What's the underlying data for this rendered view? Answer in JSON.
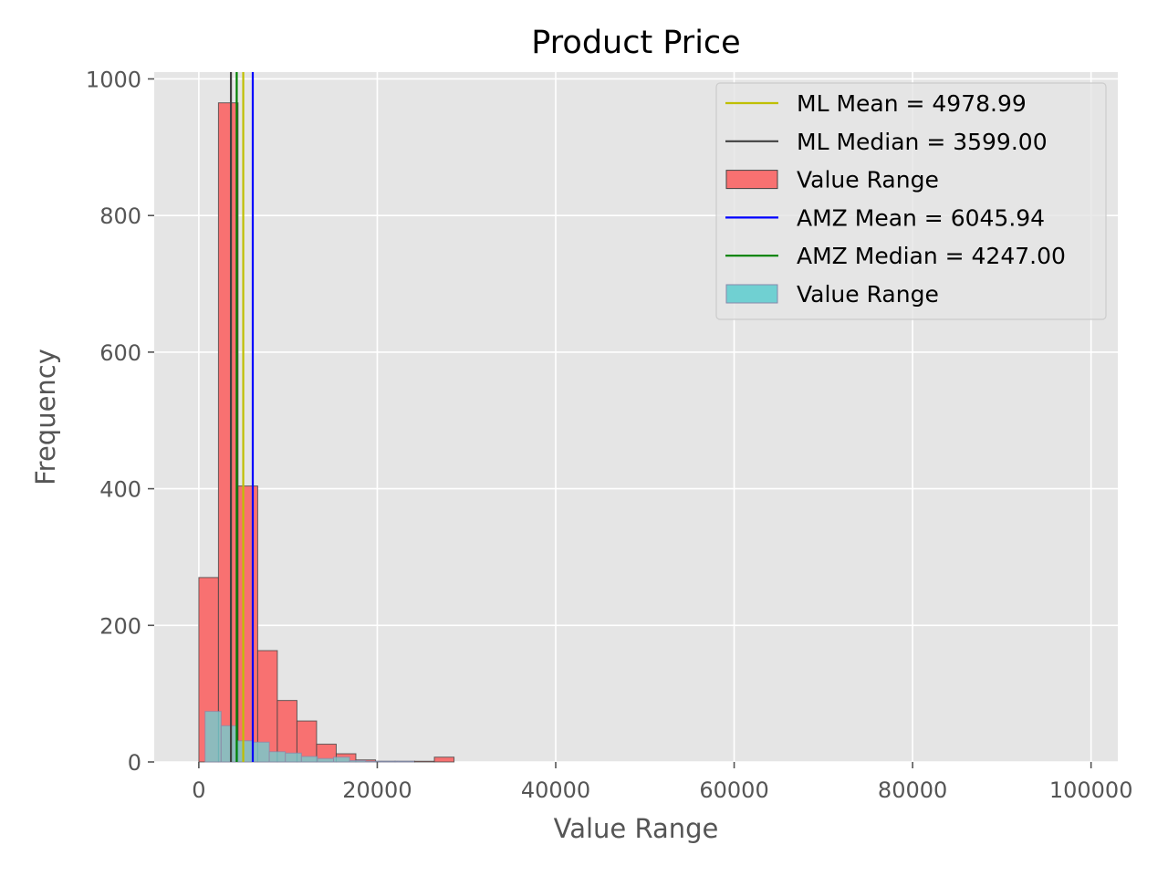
{
  "chart_data": {
    "type": "bar",
    "title": "Product Price",
    "xlabel": "Value Range",
    "ylabel": "Frequency",
    "xlim": [
      -5000,
      103000
    ],
    "ylim": [
      0,
      1010
    ],
    "x_ticks": [
      0,
      20000,
      40000,
      60000,
      80000,
      100000
    ],
    "x_tick_labels": [
      "0",
      "20000",
      "40000",
      "60000",
      "80000",
      "100000"
    ],
    "y_ticks": [
      0,
      200,
      400,
      600,
      800,
      1000
    ],
    "y_tick_labels": [
      "0",
      "200",
      "400",
      "600",
      "800",
      "1000"
    ],
    "grid": true,
    "background": "#E5E5E5",
    "legend_position": "top-right",
    "histograms": [
      {
        "label": "Value Range",
        "color": "#F87171",
        "edge_color": "#444444",
        "bins": [
          {
            "x0": 0,
            "x1": 2200,
            "count": 270
          },
          {
            "x0": 2200,
            "x1": 4400,
            "count": 965
          },
          {
            "x0": 4400,
            "x1": 6600,
            "count": 404
          },
          {
            "x0": 6600,
            "x1": 8800,
            "count": 163
          },
          {
            "x0": 8800,
            "x1": 11000,
            "count": 90
          },
          {
            "x0": 11000,
            "x1": 13200,
            "count": 60
          },
          {
            "x0": 13200,
            "x1": 15400,
            "count": 26
          },
          {
            "x0": 15400,
            "x1": 17600,
            "count": 12
          },
          {
            "x0": 17600,
            "x1": 19800,
            "count": 3
          },
          {
            "x0": 19800,
            "x1": 22000,
            "count": 1
          },
          {
            "x0": 22000,
            "x1": 24200,
            "count": 1
          },
          {
            "x0": 24200,
            "x1": 26400,
            "count": 1
          },
          {
            "x0": 26400,
            "x1": 28600,
            "count": 7
          }
        ]
      },
      {
        "label": "Value Range",
        "color": "#70D0D2",
        "edge_color": "#8888AA",
        "bins": [
          {
            "x0": 700,
            "x1": 2500,
            "count": 74
          },
          {
            "x0": 2500,
            "x1": 4300,
            "count": 53
          },
          {
            "x0": 4300,
            "x1": 6100,
            "count": 31
          },
          {
            "x0": 6100,
            "x1": 7900,
            "count": 29
          },
          {
            "x0": 7900,
            "x1": 9700,
            "count": 15
          },
          {
            "x0": 9700,
            "x1": 11500,
            "count": 13
          },
          {
            "x0": 11500,
            "x1": 13300,
            "count": 8
          },
          {
            "x0": 13300,
            "x1": 15100,
            "count": 5
          },
          {
            "x0": 15100,
            "x1": 16900,
            "count": 7
          },
          {
            "x0": 16900,
            "x1": 18700,
            "count": 2
          },
          {
            "x0": 18700,
            "x1": 20500,
            "count": 1
          },
          {
            "x0": 20500,
            "x1": 22300,
            "count": 1
          },
          {
            "x0": 22300,
            "x1": 24100,
            "count": 1
          }
        ]
      }
    ],
    "vlines": [
      {
        "label": "ML Mean = 4978.99",
        "x": 4978.99,
        "color": "#BFBF00"
      },
      {
        "label": "ML Median = 3599.00",
        "x": 3599.0,
        "color": "#404040"
      },
      {
        "label": "AMZ Mean = 6045.94",
        "x": 6045.94,
        "color": "#0000FF"
      },
      {
        "label": "AMZ Median = 4247.00",
        "x": 4247.0,
        "color": "#008000"
      }
    ],
    "legend": [
      {
        "kind": "line",
        "label": "ML Mean = 4978.99",
        "color": "#BFBF00"
      },
      {
        "kind": "line",
        "label": "ML Median = 3599.00",
        "color": "#404040"
      },
      {
        "kind": "patch",
        "label": "Value Range",
        "color": "#F87171",
        "edge_color": "#444444"
      },
      {
        "kind": "line",
        "label": "AMZ Mean = 6045.94",
        "color": "#0000FF"
      },
      {
        "kind": "line",
        "label": "AMZ Median = 4247.00",
        "color": "#008000"
      },
      {
        "kind": "patch",
        "label": "Value Range",
        "color": "#70D0D2",
        "edge_color": "#8888AA"
      }
    ]
  }
}
